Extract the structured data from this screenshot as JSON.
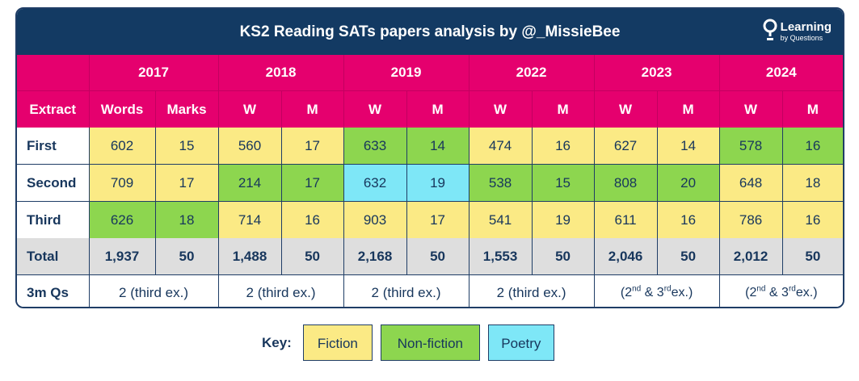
{
  "header": {
    "title": "KS2 Reading SATs papers analysis by @_MissieBee",
    "logo_big": "Learning",
    "logo_small": "by Questions"
  },
  "table": {
    "years": [
      "2017",
      "2018",
      "2019",
      "2022",
      "2023",
      "2024"
    ],
    "sub_headers": {
      "extract": "Extract",
      "y2017": [
        "Words",
        "Marks"
      ],
      "other": [
        "W",
        "M"
      ]
    },
    "rows": [
      {
        "label": "First",
        "cells": [
          {
            "w": "602",
            "m": "15",
            "type": "fiction"
          },
          {
            "w": "560",
            "m": "17",
            "type": "fiction"
          },
          {
            "w": "633",
            "m": "14",
            "type": "nonfiction"
          },
          {
            "w": "474",
            "m": "16",
            "type": "fiction"
          },
          {
            "w": "627",
            "m": "14",
            "type": "fiction"
          },
          {
            "w": "578",
            "m": "16",
            "type": "nonfiction"
          }
        ]
      },
      {
        "label": "Second",
        "cells": [
          {
            "w": "709",
            "m": "17",
            "type": "fiction"
          },
          {
            "w": "214",
            "m": "17",
            "type": "nonfiction"
          },
          {
            "w": "632",
            "m": "19",
            "type": "poetry"
          },
          {
            "w": "538",
            "m": "15",
            "type": "nonfiction"
          },
          {
            "w": "808",
            "m": "20",
            "type": "nonfiction"
          },
          {
            "w": "648",
            "m": "18",
            "type": "fiction"
          }
        ]
      },
      {
        "label": "Third",
        "cells": [
          {
            "w": "626",
            "m": "18",
            "type": "nonfiction"
          },
          {
            "w": "714",
            "m": "16",
            "type": "fiction"
          },
          {
            "w": "903",
            "m": "17",
            "type": "fiction"
          },
          {
            "w": "541",
            "m": "19",
            "type": "fiction"
          },
          {
            "w": "611",
            "m": "16",
            "type": "fiction"
          },
          {
            "w": "786",
            "m": "16",
            "type": "fiction"
          }
        ]
      }
    ],
    "total": {
      "label": "Total",
      "cells": [
        {
          "w": "1,937",
          "m": "50"
        },
        {
          "w": "1,488",
          "m": "50"
        },
        {
          "w": "2,168",
          "m": "50"
        },
        {
          "w": "1,553",
          "m": "50"
        },
        {
          "w": "2,046",
          "m": "50"
        },
        {
          "w": "2,012",
          "m": "50"
        }
      ]
    },
    "three_mark": {
      "label": "3m Qs",
      "values": [
        "2 (third ex.)",
        "2 (third ex.)",
        "2 (third ex.)",
        "2 (third ex.)"
      ],
      "sup_values": [
        {
          "open": "(2",
          "sup1": "nd",
          "mid": " & 3",
          "sup2": "rd",
          "close": "ex.)"
        },
        {
          "open": "(2",
          "sup1": "nd",
          "mid": " & 3",
          "sup2": "rd",
          "close": "ex.)"
        }
      ]
    }
  },
  "key": {
    "label": "Key:",
    "items": [
      {
        "label": "Fiction",
        "color": "#fbea85"
      },
      {
        "label": "Non-fiction",
        "color": "#8dd64f"
      },
      {
        "label": "Poetry",
        "color": "#7ee7f7"
      }
    ]
  }
}
